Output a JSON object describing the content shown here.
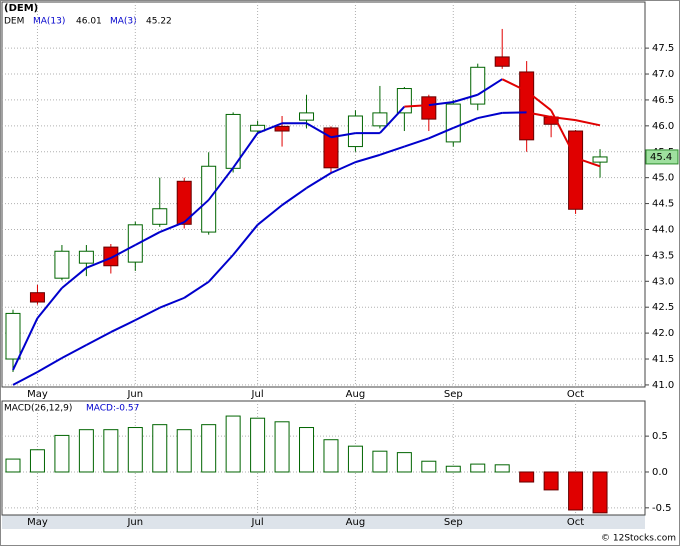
{
  "chart_data": [
    {
      "type": "candlestick",
      "title": "(DEM)",
      "symbol": "DEM",
      "categories": [
        null,
        "May",
        null,
        null,
        null,
        "Jun",
        null,
        null,
        null,
        null,
        "Jul",
        null,
        null,
        null,
        "Aug",
        null,
        null,
        null,
        "Sep",
        null,
        null,
        null,
        null,
        "Oct",
        null
      ],
      "open": [
        41.5,
        42.78,
        43.06,
        43.35,
        43.66,
        43.37,
        44.1,
        44.93,
        43.95,
        45.18,
        45.9,
        45.99,
        46.11,
        45.96,
        45.6,
        46.0,
        46.25,
        46.56,
        45.69,
        46.42,
        47.33,
        47.04,
        46.17,
        45.9,
        45.3
      ],
      "high": [
        42.45,
        42.93,
        43.7,
        43.7,
        43.72,
        44.15,
        45.0,
        45.0,
        45.49,
        46.26,
        46.1,
        46.19,
        46.6,
        45.99,
        46.3,
        46.77,
        46.75,
        46.6,
        46.5,
        47.2,
        47.87,
        47.25,
        46.2,
        45.92,
        45.55
      ],
      "low": [
        41.25,
        42.55,
        43.02,
        43.1,
        43.15,
        43.2,
        44.05,
        44.02,
        43.9,
        45.1,
        45.85,
        45.6,
        45.95,
        45.07,
        45.5,
        45.95,
        45.9,
        45.9,
        45.6,
        46.3,
        47.1,
        45.5,
        45.78,
        44.3,
        45.0
      ],
      "close": [
        42.38,
        42.6,
        43.58,
        43.58,
        43.3,
        44.09,
        44.4,
        44.1,
        45.22,
        46.22,
        46.01,
        45.9,
        46.25,
        45.19,
        46.19,
        46.25,
        46.72,
        46.13,
        46.42,
        47.13,
        47.15,
        45.73,
        46.03,
        44.39,
        45.4
      ],
      "up_color": "#006400",
      "down_color": "#e00000",
      "lines": [
        {
          "name": "MA(13)",
          "last_value": 46.01,
          "values": [
            41.0,
            41.25,
            41.52,
            41.77,
            42.02,
            42.25,
            42.49,
            42.68,
            42.99,
            43.51,
            44.09,
            44.47,
            44.8,
            45.09,
            45.3,
            45.44,
            45.6,
            45.76,
            45.96,
            46.15,
            46.25,
            46.26,
            46.17,
            46.11,
            46.01
          ],
          "colors": [
            "#0000cc",
            "#0000cc",
            "#0000cc",
            "#0000cc",
            "#0000cc",
            "#0000cc",
            "#0000cc",
            "#0000cc",
            "#0000cc",
            "#0000cc",
            "#0000cc",
            "#0000cc",
            "#0000cc",
            "#0000cc",
            "#0000cc",
            "#0000cc",
            "#0000cc",
            "#0000cc",
            "#0000cc",
            "#0000cc",
            "#0000cc",
            "#0000cc",
            "#e00000",
            "#e00000",
            "#e00000"
          ]
        },
        {
          "name": "MA(3)",
          "last_value": 45.22,
          "values": [
            41.29,
            42.29,
            42.87,
            43.26,
            43.45,
            43.7,
            43.95,
            44.14,
            44.57,
            45.19,
            45.86,
            46.05,
            46.05,
            45.78,
            45.86,
            45.86,
            46.37,
            46.4,
            46.46,
            46.6,
            46.9,
            46.67,
            46.3,
            45.38,
            45.22
          ],
          "colors": [
            "#0000cc",
            "#0000cc",
            "#0000cc",
            "#0000cc",
            "#0000cc",
            "#0000cc",
            "#0000cc",
            "#0000cc",
            "#0000cc",
            "#0000cc",
            "#0000cc",
            "#0000cc",
            "#0000cc",
            "#0000cc",
            "#0000cc",
            "#0000cc",
            "#0000cc",
            "#e00000",
            "#0000cc",
            "#0000cc",
            "#0000cc",
            "#e00000",
            "#e00000",
            "#e00000",
            "#e00000"
          ]
        }
      ],
      "last_price": {
        "value": 45.4,
        "label": "45.4"
      },
      "ylim": [
        40.96,
        48.39
      ],
      "yticks": [
        {
          "value": 41,
          "label": "41.0"
        },
        41.5,
        {
          "value": 42,
          "label": "42.0"
        },
        42.5,
        {
          "value": 43,
          "label": "43.0"
        },
        43.5,
        {
          "value": 44,
          "label": "44.0"
        },
        44.5,
        {
          "value": 45,
          "label": "45.0"
        },
        45.5,
        {
          "value": 46,
          "label": "46.0"
        },
        46.5,
        {
          "value": 47,
          "label": "47.0"
        },
        47.5
      ],
      "grid": true
    },
    {
      "type": "bar",
      "title": "MACD(26,12,9)",
      "legend": "MACD:-0.57",
      "values": [
        0.18,
        0.31,
        0.51,
        0.59,
        0.59,
        0.62,
        0.66,
        0.59,
        0.66,
        0.78,
        0.75,
        0.7,
        0.62,
        0.45,
        0.36,
        0.29,
        0.27,
        0.15,
        0.08,
        0.11,
        0.1,
        -0.14,
        -0.25,
        -0.53,
        -0.57
      ],
      "up_color": "#006400",
      "down_color": "#e00000",
      "ylim": [
        -0.6,
        0.99
      ],
      "yticks": [
        0.5,
        {
          "value": 0,
          "label": "0.0"
        },
        -0.5
      ],
      "grid": true
    }
  ],
  "footer": "© 12Stocks.com"
}
